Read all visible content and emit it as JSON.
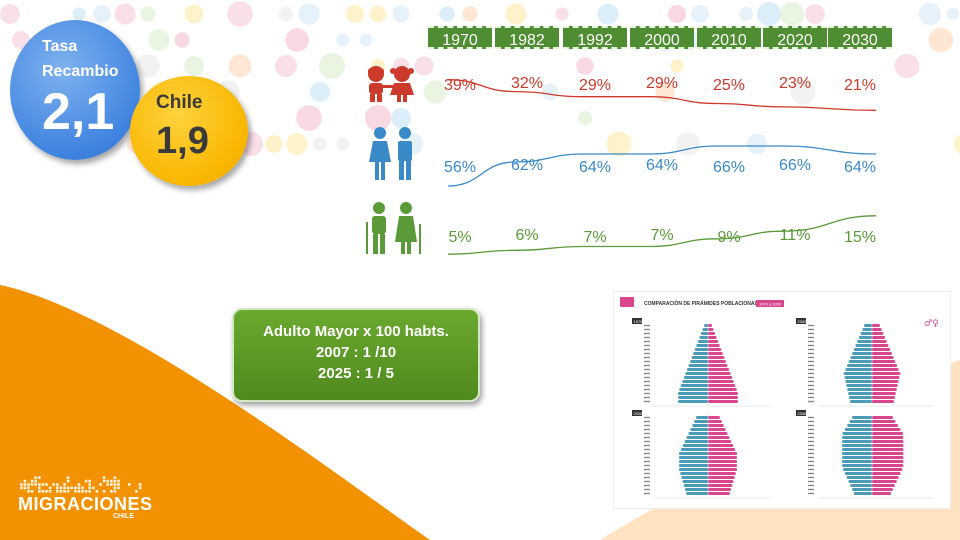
{
  "tasa": {
    "label_line1": "Tasa",
    "label_line2": "Recambio",
    "value": "2,1",
    "color": "#3f84e0"
  },
  "chile": {
    "label": "Chile",
    "value": "1,9",
    "color": "#f8b600"
  },
  "note": {
    "line1": "Adulto Mayor x 100 habts.",
    "line2": "2007 : 1 /10",
    "line3": "2025 : 1 / 5",
    "color": "#5d9b26"
  },
  "chart_data": {
    "type": "line",
    "categories": [
      "1970",
      "1982",
      "1992",
      "2000",
      "2010",
      "2020",
      "2030"
    ],
    "series": [
      {
        "icon": "children-icon",
        "color": "#cc3a2c",
        "labels": [
          "39%",
          "32%",
          "29%",
          "29%",
          "25%",
          "23%",
          "21%"
        ],
        "values": [
          39,
          32,
          29,
          29,
          25,
          23,
          21
        ]
      },
      {
        "icon": "adults-icon",
        "color": "#3a8ac8",
        "labels": [
          "56%",
          "62%",
          "64%",
          "64%",
          "66%",
          "66%",
          "64%"
        ],
        "values": [
          56,
          62,
          64,
          64,
          66,
          66,
          64
        ]
      },
      {
        "icon": "elderly-icon",
        "color": "#5a9a38",
        "labels": [
          "5%",
          "6%",
          "7%",
          "7%",
          "9%",
          "11%",
          "15%"
        ],
        "values": [
          5,
          6,
          7,
          7,
          9,
          11,
          15
        ]
      }
    ]
  },
  "pyramid_panel": {
    "title": "COMPARACIÓN DE PIRÁMIDES POBLACIONALES",
    "badge": "1970 a 2050",
    "icon": "report-icon",
    "panels": [
      "1970",
      "2000",
      "2020",
      "2050"
    ],
    "colors": {
      "male": "#4a9ab8",
      "female": "#d9468e"
    }
  },
  "logo": {
    "word": "MIGRACIONES",
    "sub": "CHILE"
  },
  "colors": {
    "swoosh": "#f39200",
    "swoosh_light": "#f8b04a"
  }
}
